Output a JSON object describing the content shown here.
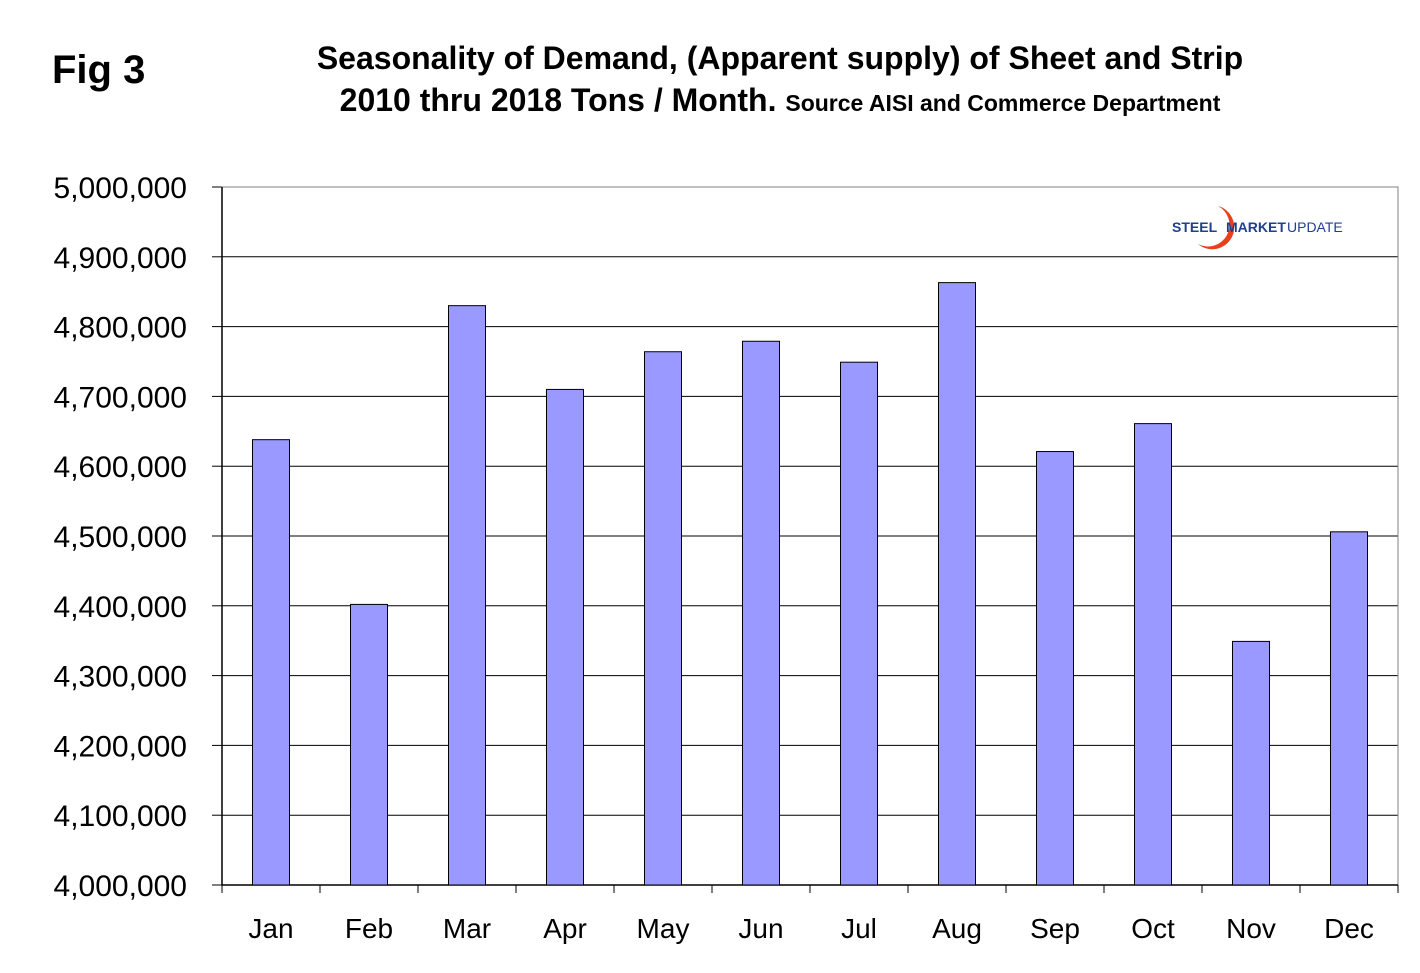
{
  "figure": {
    "label": "Fig 3",
    "title_line1": "Seasonality of Demand, (Apparent supply) of Sheet and Strip",
    "title_line2": "2010 thru 2018 Tons / Month.",
    "title_source": "Source AISI and Commerce Department"
  },
  "logo": {
    "word1": "STEEL",
    "word2": "MARKET",
    "word3": "UPDATE",
    "colors": {
      "text": "#1f3f8f",
      "swoosh_outer": "#e8401c",
      "swoosh_inner": "#f5a623"
    }
  },
  "colors": {
    "bar_fill": "#9999ff",
    "bar_stroke": "#000000",
    "gridline": "#000000",
    "background": "#ffffff"
  },
  "chart_data": {
    "type": "bar",
    "categories": [
      "Jan",
      "Feb",
      "Mar",
      "Apr",
      "May",
      "Jun",
      "Jul",
      "Aug",
      "Sep",
      "Oct",
      "Nov",
      "Dec"
    ],
    "values": [
      4638000,
      4402000,
      4830000,
      4710000,
      4764000,
      4779000,
      4749000,
      4863000,
      4621000,
      4661000,
      4349000,
      4506000
    ],
    "ylim": [
      4000000,
      5000000
    ],
    "yticks": [
      4000000,
      4100000,
      4200000,
      4300000,
      4400000,
      4500000,
      4600000,
      4700000,
      4800000,
      4900000,
      5000000
    ],
    "ytick_labels": [
      "4,000,000",
      "4,100,000",
      "4,200,000",
      "4,300,000",
      "4,400,000",
      "4,500,000",
      "4,600,000",
      "4,700,000",
      "4,800,000",
      "4,900,000",
      "5,000,000"
    ],
    "title": "Seasonality of Demand, (Apparent supply) of Sheet and Strip 2010 thru 2018 Tons / Month. Source AISI and Commerce Department",
    "xlabel": "",
    "ylabel": "",
    "grid": true,
    "legend": "none"
  }
}
